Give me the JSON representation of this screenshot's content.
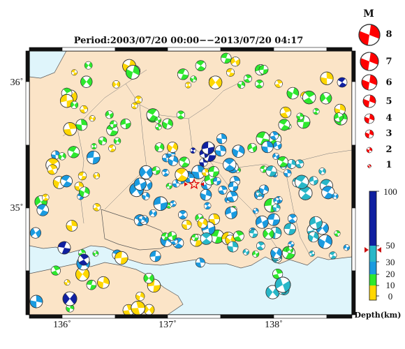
{
  "title": "Period:2003/07/20 00:00−−2013/07/20 04:17",
  "map": {
    "lon_labels": [
      "136˚",
      "137˚",
      "138˚"
    ],
    "lat_labels": [
      "36˚",
      "35˚"
    ],
    "lon_range": [
      135.7,
      138.82
    ],
    "lat_range": [
      34.08,
      36.25
    ],
    "land_color": "#fbe4c7",
    "sea_color": "#dff5fb",
    "frame_color": "#111111",
    "target_marker": {
      "lon": 137.18,
      "lat": 35.2,
      "color": "#e00000"
    }
  },
  "magnitude_legend": {
    "title": "M",
    "labels": [
      "8",
      "7",
      "6",
      "5",
      "4",
      "3",
      "2",
      "1"
    ],
    "magnitudes": [
      8,
      7,
      6,
      5,
      4,
      3,
      2,
      1
    ],
    "color": "#ff0000"
  },
  "depth_scale": {
    "title": "Depth(km)",
    "labels": [
      "100",
      "50",
      "30",
      "20",
      "10",
      "0"
    ],
    "depths": [
      100,
      50,
      30,
      20,
      10,
      0
    ],
    "colors": {
      "shallow": "#ffd700",
      "mid": "#2ee82e",
      "deep": "#1a9be0",
      "deeper": "#28b7c8",
      "deepest": "#1020a0"
    },
    "marker_depth": 44,
    "marker_color": "#cc1111"
  }
}
